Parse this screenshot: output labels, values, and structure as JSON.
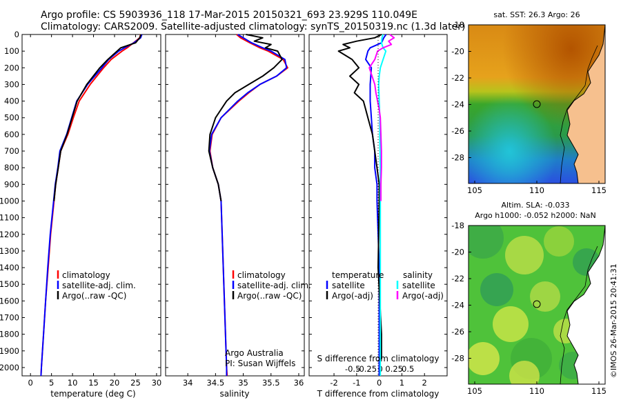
{
  "header": {
    "line1": "Argo profile: CS 5903936_118 17-Mar-2015 20150321_693 23.929S 110.049E",
    "line2": "Climatology: CARS2009. Satellite-adjusted climatology: synTS_20150319.nc (1.3d later)"
  },
  "colors": {
    "climatology": "#ff0000",
    "satellite": "#0000ff",
    "argo": "#000000",
    "sal_satellite": "#00ffff",
    "sal_argo": "#ff00ff"
  },
  "chart_data": [
    {
      "type": "line",
      "name": "temperature-profile",
      "xlabel": "temperature (deg C)",
      "xlim": [
        -2,
        31
      ],
      "xticks": [
        0,
        5,
        10,
        15,
        20,
        25,
        30
      ],
      "ylim": [
        0,
        2050
      ],
      "yticks": [
        0,
        100,
        200,
        300,
        400,
        500,
        600,
        700,
        800,
        900,
        1000,
        1100,
        1200,
        1300,
        1400,
        1500,
        1600,
        1700,
        1800,
        1900,
        2000
      ],
      "legend": [
        "climatology",
        "satellite-adj. clim.",
        "Argo(..raw -QC)"
      ],
      "series": [
        {
          "name": "climatology",
          "depth": [
            0,
            20,
            50,
            80,
            100,
            150,
            200,
            300,
            400,
            500,
            600,
            700,
            800,
            900,
            1000,
            1200,
            1400,
            1600,
            1800,
            2000,
            2050
          ],
          "values": [
            26.2,
            26.0,
            24.5,
            23.0,
            21.8,
            19.2,
            17.4,
            14.2,
            11.6,
            10.2,
            8.9,
            7.2,
            6.6,
            6.0,
            5.6,
            4.8,
            4.2,
            3.6,
            3.1,
            2.6,
            2.5
          ]
        },
        {
          "name": "satellite-adj. clim.",
          "depth": [
            0,
            20,
            50,
            80,
            100,
            150,
            200,
            300,
            400,
            500,
            600,
            700,
            800,
            900,
            1000,
            1200,
            1400,
            1600,
            1800,
            2000,
            2050
          ],
          "values": [
            26.5,
            26.2,
            24.6,
            22.4,
            21.0,
            18.6,
            17.0,
            13.6,
            11.0,
            9.8,
            8.6,
            7.0,
            6.5,
            5.9,
            5.5,
            4.7,
            4.1,
            3.6,
            3.1,
            2.6,
            2.5
          ]
        },
        {
          "name": "Argo(..raw -QC)",
          "depth": [
            0,
            20,
            50,
            80,
            100,
            150,
            200,
            300,
            400,
            500,
            600,
            700,
            800,
            900,
            1000
          ],
          "values": [
            26.3,
            26.0,
            25.0,
            21.5,
            20.6,
            18.4,
            16.5,
            13.4,
            11.1,
            9.9,
            8.7,
            7.2,
            6.6,
            6.0,
            5.6
          ]
        }
      ]
    },
    {
      "type": "line",
      "name": "salinity-profile",
      "xlabel": "salinity",
      "xlim": [
        33.6,
        36.1
      ],
      "xticks": [
        34,
        34.5,
        35,
        35.5,
        36
      ],
      "ylim": [
        0,
        2050
      ],
      "legend": [
        "climatology",
        "satellite-adj. clim.",
        "Argo(..raw -QC)"
      ],
      "annotation": [
        "Argo Australia",
        "PI: Susan Wijffels"
      ],
      "series": [
        {
          "name": "climatology",
          "depth": [
            0,
            20,
            50,
            80,
            100,
            150,
            200,
            250,
            300,
            350,
            400,
            500,
            600,
            700,
            800,
            900,
            1000,
            1200,
            1500,
            2000,
            2050
          ],
          "values": [
            34.88,
            34.95,
            35.12,
            35.3,
            35.45,
            35.72,
            35.8,
            35.6,
            35.3,
            35.1,
            34.92,
            34.6,
            34.44,
            34.4,
            34.45,
            34.55,
            34.6,
            34.62,
            34.65,
            34.7,
            34.71
          ]
        },
        {
          "name": "satellite-adj. clim.",
          "depth": [
            0,
            20,
            50,
            80,
            100,
            150,
            200,
            250,
            300,
            350,
            400,
            500,
            600,
            700,
            800,
            900,
            1000,
            1200,
            1500,
            2000,
            2050
          ],
          "values": [
            34.9,
            35.0,
            35.15,
            35.35,
            35.5,
            35.75,
            35.78,
            35.6,
            35.3,
            35.08,
            34.9,
            34.6,
            34.43,
            34.39,
            34.45,
            34.55,
            34.6,
            34.62,
            34.65,
            34.7,
            34.7
          ]
        },
        {
          "name": "Argo(..raw -QC)",
          "depth": [
            0,
            20,
            40,
            60,
            80,
            100,
            150,
            200,
            250,
            300,
            350,
            400,
            500,
            600,
            700,
            800,
            900,
            1000
          ],
          "values": [
            35.05,
            35.35,
            35.2,
            35.5,
            35.4,
            35.62,
            35.7,
            35.55,
            35.35,
            35.1,
            34.85,
            34.7,
            34.5,
            34.4,
            34.38,
            34.45,
            34.55,
            34.6
          ]
        }
      ]
    },
    {
      "type": "line",
      "name": "difference-profile",
      "xlabel": "T difference from climatology",
      "x2label": "S difference from climatology",
      "xlim": [
        -3.1,
        3.0
      ],
      "xticks": [
        -2,
        -1,
        0,
        1,
        2
      ],
      "x2ticks": [
        "-0.5",
        "-0.25",
        "0",
        "0.25",
        "0.5"
      ],
      "x2values": [
        -0.5,
        -0.25,
        0,
        0.25,
        0.5
      ],
      "ylim": [
        0,
        2050
      ],
      "legend_temperature_title": "temperature",
      "legend_salinity_title": "salinity",
      "legend": [
        "satellite",
        "Argo(-adj)",
        "satellite",
        "Argo(-adj)"
      ],
      "series": [
        {
          "name": "T satellite",
          "depth": [
            0,
            20,
            50,
            80,
            100,
            150,
            200,
            300,
            400,
            500,
            600,
            700,
            800,
            900,
            1000,
            1200,
            1400,
            1600,
            1800,
            2000,
            2050
          ],
          "values": [
            0.3,
            0.2,
            0.1,
            -0.4,
            -0.5,
            -0.6,
            -0.35,
            -0.4,
            -0.4,
            -0.35,
            -0.3,
            -0.2,
            -0.2,
            -0.1,
            -0.1,
            -0.05,
            0,
            0,
            0,
            0,
            0
          ]
        },
        {
          "name": "T Argo(-adj)",
          "depth": [
            0,
            20,
            40,
            60,
            80,
            100,
            150,
            200,
            250,
            300,
            350,
            400,
            450,
            500,
            600,
            700,
            800,
            900,
            1000,
            1400,
            1800,
            1950
          ],
          "values": [
            0.1,
            -0.2,
            -1.0,
            -1.6,
            -1.3,
            -1.8,
            -1.2,
            -0.9,
            -1.3,
            -0.9,
            -1.1,
            -0.7,
            -0.6,
            -0.5,
            -0.3,
            -0.2,
            -0.1,
            0,
            0,
            -0.05,
            0.1,
            0.1
          ]
        },
        {
          "name": "S satellite",
          "depth": [
            0,
            20,
            50,
            80,
            100,
            150,
            200,
            250,
            300,
            400,
            500,
            600,
            800,
            1000,
            1200,
            1500,
            2000,
            2050
          ],
          "values": [
            0.05,
            0.03,
            0.02,
            0.05,
            0.1,
            0.05,
            0.0,
            -0.02,
            -0.03,
            -0.02,
            -0.01,
            -0.01,
            0,
            0,
            0,
            0,
            0,
            0
          ]
        },
        {
          "name": "S Argo(-adj)",
          "depth": [
            0,
            20,
            40,
            60,
            80,
            100,
            150,
            200,
            250,
            300,
            350,
            400,
            450,
            500,
            600,
            700,
            800,
            900,
            1000
          ],
          "values": [
            0.17,
            0.25,
            0.15,
            0.2,
            0.05,
            -0.05,
            -0.1,
            -0.2,
            -0.15,
            -0.1,
            -0.08,
            -0.05,
            -0.02,
            0,
            0.01,
            0.02,
            0.02,
            0.01,
            0.01
          ]
        }
      ]
    }
  ],
  "maps": {
    "sst": {
      "title": "sat. SST: 26.3 Argo: 26",
      "xticks": [
        "105",
        "110",
        "115"
      ],
      "yticks": [
        "-18",
        "-20",
        "-22",
        "-24",
        "-26",
        "-28"
      ],
      "float_lon": 110.049,
      "float_lat": -23.929
    },
    "sla": {
      "title1": "Altim. SLA: -0.033",
      "title2": "Argo h1000: -0.052 h2000: NaN",
      "xticks": [
        "105",
        "110",
        "115"
      ],
      "yticks": [
        "-18",
        "-20",
        "-22",
        "-24",
        "-26",
        "-28"
      ],
      "float_lon": 110.049,
      "float_lat": -23.929
    }
  },
  "credit": "©IMOS 26-Mar-2015 20:41:31"
}
